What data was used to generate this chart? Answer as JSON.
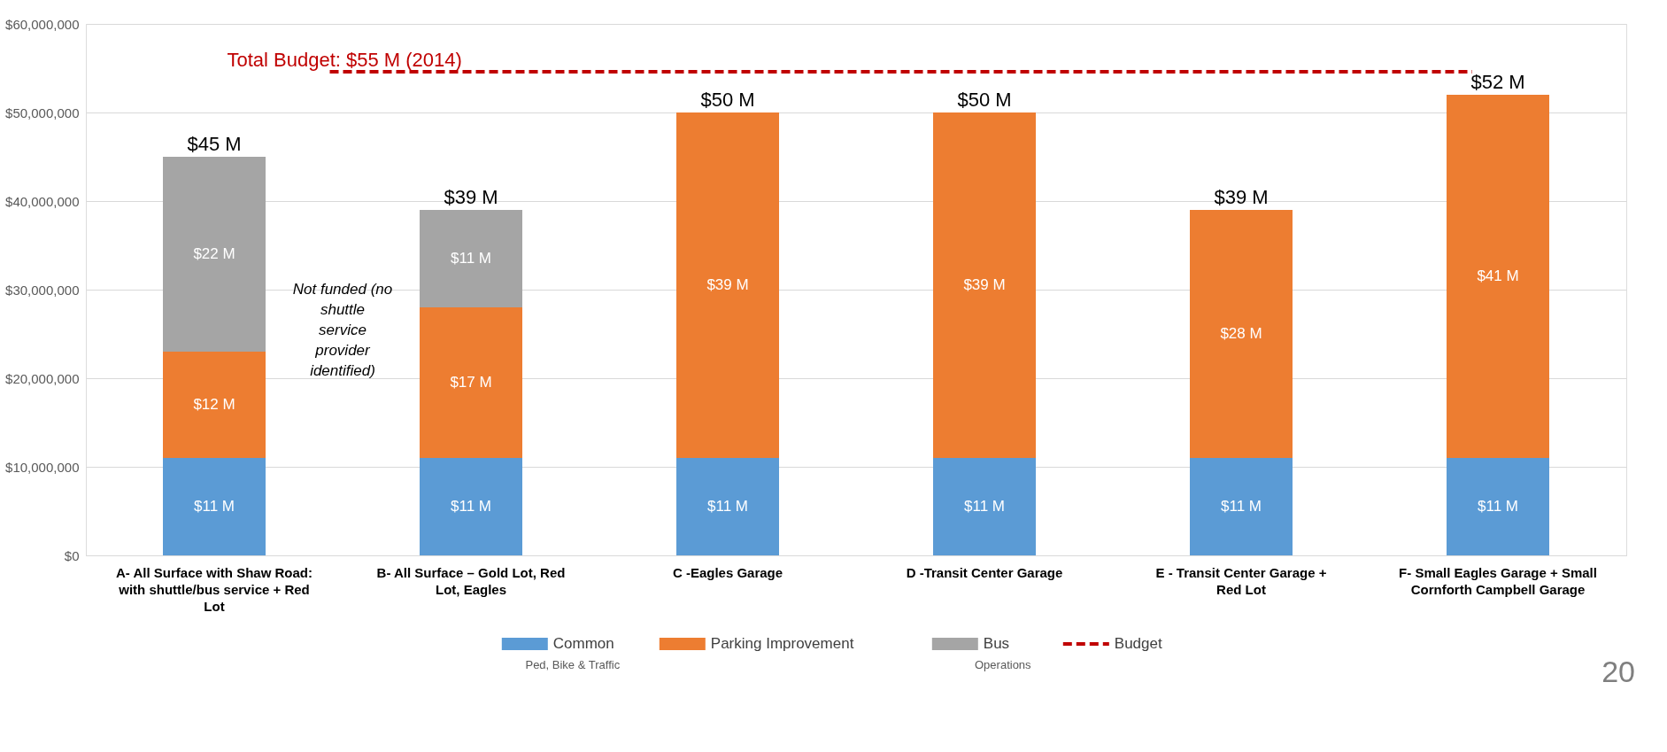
{
  "chart_data": {
    "type": "bar",
    "stacked": true,
    "categories": [
      "A- All Surface with Shaw Road: with shuttle/bus service + Red Lot",
      "B- All Surface – Gold Lot, Red Lot, Eagles",
      "C -Eagles Garage",
      "D -Transit Center Garage",
      "E - Transit Center Garage + Red Lot",
      "F- Small Eagles Garage + Small Cornforth Campbell Garage"
    ],
    "series": [
      {
        "name": "Common\nPed, Bike & Traffic",
        "color": "#5b9bd5",
        "values": [
          11000000,
          11000000,
          11000000,
          11000000,
          11000000,
          11000000
        ],
        "value_labels": [
          "$11 M",
          "$11 M",
          "$11 M",
          "$11 M",
          "$11 M",
          "$11 M"
        ]
      },
      {
        "name": "Parking Improvement",
        "color": "#ed7d31",
        "values": [
          12000000,
          17000000,
          39000000,
          39000000,
          28000000,
          41000000
        ],
        "value_labels": [
          "$12 M",
          "$17 M",
          "$39 M",
          "$39 M",
          "$28 M",
          "$41 M"
        ]
      },
      {
        "name": "Bus\nOperations",
        "color": "#a5a5a5",
        "values": [
          22000000,
          11000000,
          null,
          null,
          null,
          null
        ],
        "value_labels": [
          "$22 M",
          "$11 M",
          null,
          null,
          null,
          null
        ]
      }
    ],
    "totals": [
      "$45 M",
      "$39 M",
      "$50 M",
      "$50 M",
      "$39 M",
      "$52 M"
    ],
    "ref_lines": [
      {
        "axis": "y",
        "value": 54600000,
        "label": "Total Budget: $55 M (2014)",
        "color": "#c00000",
        "line_style": "dashed"
      }
    ],
    "ylim": [
      0,
      60000000
    ],
    "yticks": [
      {
        "value": 0,
        "label": "$0"
      },
      {
        "value": 10000000,
        "label": "$10,000,000"
      },
      {
        "value": 20000000,
        "label": "$20,000,000"
      },
      {
        "value": 30000000,
        "label": "$30,000,000"
      },
      {
        "value": 40000000,
        "label": "$40,000,000"
      },
      {
        "value": 50000000,
        "label": "$50,000,000"
      },
      {
        "value": 60000000,
        "label": "$60,000,000"
      }
    ],
    "grid": "y",
    "legend": "bottom",
    "annotations": [
      "Not funded (no shuttle service provider identified)",
      "20",
      "Budget"
    ]
  }
}
